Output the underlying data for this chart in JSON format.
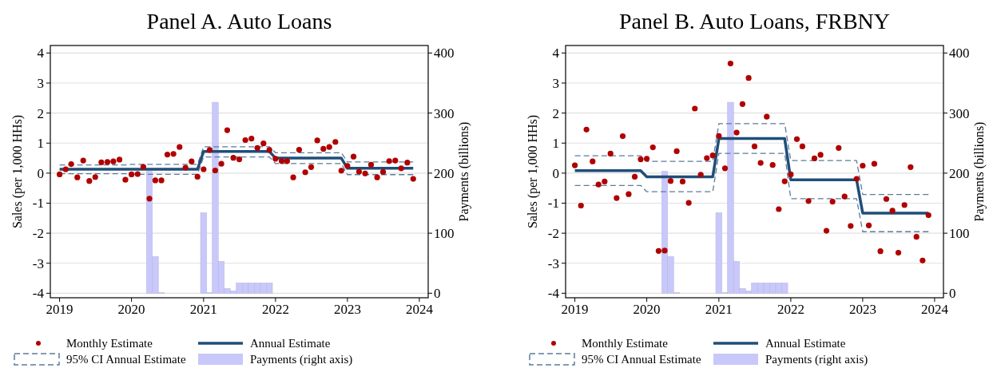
{
  "chart_data": [
    {
      "type": "scatter",
      "title": "Panel A. Auto Loans",
      "ylabel": "Sales (per 1,000 HHs)",
      "y2label": "Payments (billions)",
      "x": [
        "2019-01",
        "2019-02",
        "2019-03",
        "2019-04",
        "2019-05",
        "2019-06",
        "2019-07",
        "2019-08",
        "2019-09",
        "2019-10",
        "2019-11",
        "2019-12",
        "2020-01",
        "2020-02",
        "2020-03",
        "2020-04",
        "2020-05",
        "2020-06",
        "2020-07",
        "2020-08",
        "2020-09",
        "2020-10",
        "2020-11",
        "2020-12",
        "2021-01",
        "2021-02",
        "2021-03",
        "2021-04",
        "2021-05",
        "2021-06",
        "2021-07",
        "2021-08",
        "2021-09",
        "2021-10",
        "2021-11",
        "2021-12",
        "2022-01",
        "2022-02",
        "2022-03",
        "2022-04",
        "2022-05",
        "2022-06",
        "2022-07",
        "2022-08",
        "2022-09",
        "2022-10",
        "2022-11",
        "2022-12",
        "2023-01",
        "2023-02",
        "2023-03",
        "2023-04",
        "2023-05",
        "2023-06",
        "2023-07",
        "2023-08",
        "2023-09",
        "2023-10",
        "2023-11",
        "2023-12"
      ],
      "xlim": [
        "2018-11-15",
        "2024-02-15"
      ],
      "xticks": [
        {
          "value": "2019",
          "label": "2019"
        },
        {
          "value": "2020",
          "label": "2020"
        },
        {
          "value": "2021",
          "label": "2021"
        },
        {
          "value": "2022",
          "label": "2022"
        },
        {
          "value": "2023",
          "label": "2023"
        },
        {
          "value": "2024",
          "label": "2024"
        }
      ],
      "ylim": [
        -4.15,
        4.25
      ],
      "yticks": [
        -4,
        -3,
        -2,
        -1,
        0,
        1,
        2,
        3,
        4
      ],
      "y2lim": [
        -7.5,
        412.5
      ],
      "y2ticks": [
        0,
        100,
        200,
        300,
        400
      ],
      "grid": "y",
      "legend": "bottom",
      "series": [
        {
          "name": "Monthly Estimate",
          "marker": "circle",
          "color": "#b00000",
          "values": [
            -0.04,
            0.13,
            0.3,
            -0.14,
            0.42,
            -0.26,
            -0.13,
            0.36,
            0.37,
            0.39,
            0.45,
            -0.22,
            -0.04,
            -0.03,
            0.21,
            -0.85,
            -0.24,
            -0.24,
            0.62,
            0.64,
            0.87,
            0.18,
            0.39,
            -0.12,
            0.13,
            0.77,
            0.09,
            0.31,
            1.43,
            0.51,
            0.46,
            1.1,
            1.15,
            0.84,
            0.99,
            0.77,
            0.48,
            0.4,
            0.4,
            -0.14,
            0.78,
            0.03,
            0.2,
            1.09,
            0.81,
            0.87,
            1.04,
            0.08,
            0.24,
            0.55,
            0.05,
            -0.01,
            0.28,
            -0.14,
            0.04,
            0.4,
            0.42,
            0.16,
            0.35,
            -0.19
          ]
        },
        {
          "name": "Annual Estimate",
          "type": "line",
          "color": "#1f4e79",
          "x": [
            "2019-01",
            "2019-12",
            "2020-01",
            "2020-12",
            "2021-01",
            "2021-12",
            "2022-01",
            "2022-12",
            "2023-01",
            "2023-12"
          ],
          "values": [
            0.13,
            0.13,
            0.13,
            0.13,
            0.72,
            0.72,
            0.5,
            0.5,
            0.16,
            0.16
          ]
        },
        {
          "name": "95% CI Annual Estimate",
          "type": "line",
          "line_style": "dashed",
          "color": "#5b7c9c",
          "x": [
            "2019-01",
            "2019-12",
            "2020-01",
            "2020-12",
            "2021-01",
            "2021-12",
            "2022-01",
            "2022-12",
            "2023-01",
            "2023-12"
          ],
          "values": [
            0.27,
            0.27,
            0.29,
            0.29,
            0.88,
            0.88,
            0.68,
            0.68,
            0.37,
            0.37
          ]
        },
        {
          "type": "line",
          "line_style": "dashed",
          "color": "#5b7c9c",
          "x": [
            "2019-01",
            "2019-12",
            "2020-01",
            "2020-12",
            "2021-01",
            "2021-12",
            "2022-01",
            "2022-12",
            "2023-01",
            "2023-12"
          ],
          "values": [
            -0.02,
            -0.02,
            -0.04,
            -0.04,
            0.54,
            0.54,
            0.32,
            0.32,
            -0.05,
            -0.05
          ]
        },
        {
          "name": "Payments (right axis)",
          "type": "bar",
          "axis": "y2",
          "color": "#c8c8fa",
          "x": [
            "2020-04",
            "2020-05",
            "2020-06",
            "2021-01",
            "2021-02",
            "2021-03",
            "2021-04",
            "2021-05",
            "2021-06",
            "2021-07",
            "2021-08",
            "2021-09",
            "2021-10",
            "2021-11",
            "2021-12"
          ],
          "values": [
            203,
            61,
            1,
            134,
            1,
            318,
            53,
            8,
            4,
            17,
            17,
            17,
            17,
            17,
            17
          ]
        }
      ]
    },
    {
      "type": "scatter",
      "title": "Panel B. Auto Loans, FRBNY",
      "ylabel": "Sales (per 1,000 HHs)",
      "y2label": "Payments (billions)",
      "x": [
        "2019-01",
        "2019-02",
        "2019-03",
        "2019-04",
        "2019-05",
        "2019-06",
        "2019-07",
        "2019-08",
        "2019-09",
        "2019-10",
        "2019-11",
        "2019-12",
        "2020-01",
        "2020-02",
        "2020-03",
        "2020-04",
        "2020-05",
        "2020-06",
        "2020-07",
        "2020-08",
        "2020-09",
        "2020-10",
        "2020-11",
        "2020-12",
        "2021-01",
        "2021-02",
        "2021-03",
        "2021-04",
        "2021-05",
        "2021-06",
        "2021-07",
        "2021-08",
        "2021-09",
        "2021-10",
        "2021-11",
        "2021-12",
        "2022-01",
        "2022-02",
        "2022-03",
        "2022-04",
        "2022-05",
        "2022-06",
        "2022-07",
        "2022-08",
        "2022-09",
        "2022-10",
        "2022-11",
        "2022-12",
        "2023-01",
        "2023-02",
        "2023-03",
        "2023-04",
        "2023-05",
        "2023-06",
        "2023-07",
        "2023-08",
        "2023-09",
        "2023-10",
        "2023-11",
        "2023-12"
      ],
      "xlim": [
        "2018-11-15",
        "2024-02-15"
      ],
      "xticks": [
        {
          "value": "2019",
          "label": "2019"
        },
        {
          "value": "2020",
          "label": "2020"
        },
        {
          "value": "2021",
          "label": "2021"
        },
        {
          "value": "2022",
          "label": "2022"
        },
        {
          "value": "2023",
          "label": "2023"
        },
        {
          "value": "2024",
          "label": "2024"
        }
      ],
      "ylim": [
        -4.15,
        4.25
      ],
      "yticks": [
        -4,
        -3,
        -2,
        -1,
        0,
        1,
        2,
        3,
        4
      ],
      "y2lim": [
        -7.5,
        412.5
      ],
      "y2ticks": [
        0,
        100,
        200,
        300,
        400
      ],
      "grid": "y",
      "legend": "bottom",
      "series": [
        {
          "name": "Monthly Estimate",
          "marker": "circle",
          "color": "#b00000",
          "values": [
            0.26,
            -1.08,
            1.45,
            0.39,
            -0.38,
            -0.28,
            0.65,
            -0.83,
            1.23,
            -0.7,
            -0.12,
            0.46,
            0.48,
            0.86,
            -2.59,
            -2.58,
            -0.26,
            0.73,
            -0.28,
            -0.99,
            2.15,
            -0.05,
            0.5,
            0.59,
            1.24,
            0.16,
            3.65,
            1.35,
            2.3,
            3.17,
            0.89,
            0.34,
            1.88,
            0.27,
            -1.2,
            -0.27,
            -0.04,
            1.13,
            0.89,
            -0.93,
            0.49,
            0.61,
            -1.92,
            -0.95,
            0.84,
            -0.78,
            -1.76,
            -0.19,
            0.25,
            -1.74,
            0.31,
            -2.6,
            -0.86,
            -1.25,
            -2.65,
            -1.06,
            0.2,
            -2.12,
            -2.91,
            -1.4
          ]
        },
        {
          "name": "Annual Estimate",
          "type": "line",
          "color": "#1f4e79",
          "x": [
            "2019-01",
            "2019-12",
            "2020-01",
            "2020-12",
            "2021-01",
            "2021-12",
            "2022-01",
            "2022-12",
            "2023-01",
            "2023-12"
          ],
          "values": [
            0.08,
            0.08,
            -0.12,
            -0.12,
            1.15,
            1.15,
            -0.22,
            -0.22,
            -1.33,
            -1.33
          ]
        },
        {
          "name": "95% CI Annual Estimate",
          "type": "line",
          "line_style": "dashed",
          "color": "#5b7c9c",
          "x": [
            "2019-01",
            "2019-12",
            "2020-01",
            "2020-12",
            "2021-01",
            "2021-12",
            "2022-01",
            "2022-12",
            "2023-01",
            "2023-12"
          ],
          "values": [
            0.58,
            0.58,
            0.39,
            0.39,
            1.65,
            1.65,
            0.42,
            0.42,
            -0.71,
            -0.71
          ]
        },
        {
          "type": "line",
          "line_style": "dashed",
          "color": "#5b7c9c",
          "x": [
            "2019-01",
            "2019-12",
            "2020-01",
            "2020-12",
            "2021-01",
            "2021-12",
            "2022-01",
            "2022-12",
            "2023-01",
            "2023-12"
          ],
          "values": [
            -0.41,
            -0.41,
            -0.62,
            -0.62,
            0.66,
            0.66,
            -0.85,
            -0.85,
            -1.95,
            -1.95
          ]
        },
        {
          "name": "Payments (right axis)",
          "type": "bar",
          "axis": "y2",
          "color": "#c8c8fa",
          "x": [
            "2020-04",
            "2020-05",
            "2020-06",
            "2021-01",
            "2021-02",
            "2021-03",
            "2021-04",
            "2021-05",
            "2021-06",
            "2021-07",
            "2021-08",
            "2021-09",
            "2021-10",
            "2021-11",
            "2021-12"
          ],
          "values": [
            203,
            61,
            1,
            134,
            1,
            318,
            53,
            8,
            4,
            17,
            17,
            17,
            17,
            17,
            17
          ]
        }
      ]
    }
  ]
}
